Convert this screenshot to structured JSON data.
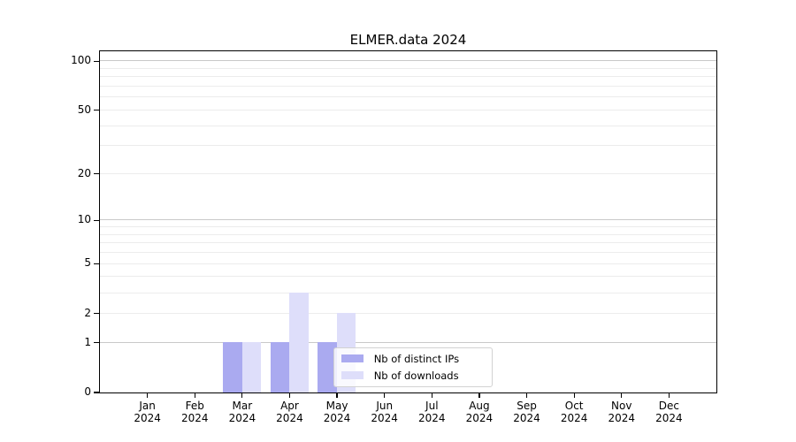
{
  "title": "ELMER.data 2024",
  "legend": {
    "items": [
      {
        "label": "Nb of distinct IPs",
        "color": "#aaaaf0"
      },
      {
        "label": "Nb of downloads",
        "color": "#dedefa"
      }
    ]
  },
  "chart_data": {
    "type": "bar",
    "title": "ELMER.data 2024",
    "categories": [
      "Jan",
      "Feb",
      "Mar",
      "Apr",
      "May",
      "Jun",
      "Jul",
      "Aug",
      "Sep",
      "Oct",
      "Nov",
      "Dec"
    ],
    "x_year_label": "2024",
    "series": [
      {
        "name": "Nb of distinct IPs",
        "color": "#aaaaf0",
        "values": [
          0,
          0,
          1,
          1,
          1,
          0,
          0,
          0,
          0,
          0,
          0,
          0
        ]
      },
      {
        "name": "Nb of downloads",
        "color": "#dedefa",
        "values": [
          0,
          0,
          1,
          3,
          2,
          0,
          0,
          0,
          0,
          0,
          0,
          0
        ]
      }
    ],
    "xlabel": "",
    "ylabel": "",
    "yscale": "log10(value+1)",
    "ylim": [
      0,
      110
    ],
    "yticks": [
      0,
      1,
      2,
      5,
      10,
      20,
      50,
      100
    ],
    "major_gridlines": [
      1,
      10,
      100
    ],
    "minor_gridlines": [
      2,
      3,
      4,
      5,
      6,
      7,
      8,
      9,
      20,
      30,
      40,
      50,
      60,
      70,
      80,
      90
    ],
    "grid": "horizontal",
    "legend_position": "inside-bottom-center",
    "colors": {
      "minor_grid": "#ececec",
      "major_grid": "#c9c9c9",
      "axis": "#000000",
      "background": "#ffffff"
    }
  }
}
